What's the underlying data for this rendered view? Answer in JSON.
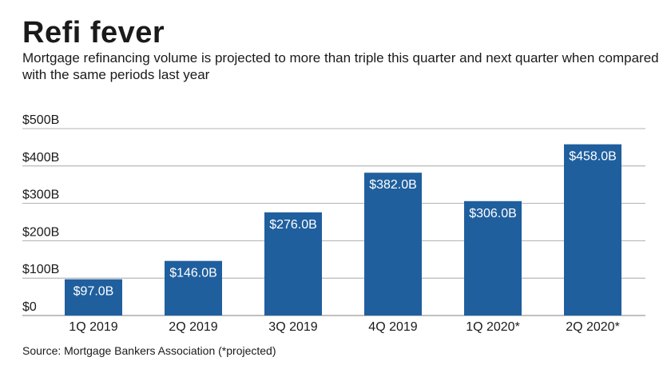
{
  "header": {
    "title": "Refi fever",
    "subtitle": "Mortgage refinancing volume is projected to more than triple this quarter and next quarter when compared with the same periods last year"
  },
  "footer": {
    "source": "Source: Mortgage Bankers Association (*projected)"
  },
  "colors": {
    "bar": "#1f5f9e",
    "grid": "#9a9a9a",
    "text": "#1a1a1a",
    "label": "#ffffff"
  },
  "chart_data": {
    "type": "bar",
    "title": "Refi fever",
    "xlabel": "",
    "ylabel": "",
    "categories": [
      "1Q 2019",
      "2Q 2019",
      "3Q 2019",
      "4Q 2019",
      "1Q 2020*",
      "2Q 2020*"
    ],
    "values": [
      97.0,
      146.0,
      276.0,
      382.0,
      306.0,
      458.0
    ],
    "data_labels": [
      "$97.0B",
      "$146.0B",
      "$276.0B",
      "$382.0B",
      "$306.0B",
      "$458.0B"
    ],
    "yticks": [
      0,
      100,
      200,
      300,
      400,
      500
    ],
    "ytick_labels": [
      "$0",
      "$100B",
      "$200B",
      "$300B",
      "$400B",
      "$500B"
    ],
    "ylim": [
      0,
      500
    ],
    "grid": true
  }
}
